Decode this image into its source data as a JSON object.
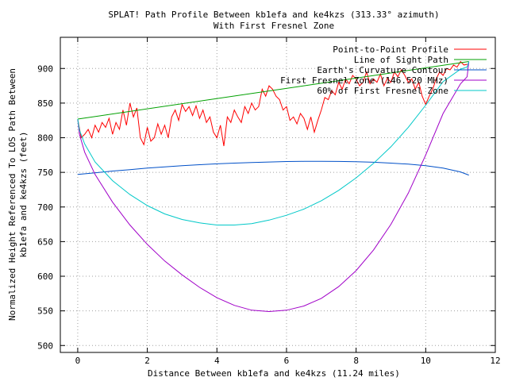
{
  "chart_data": {
    "type": "line",
    "title": "SPLAT! Path Profile Between kb1efa and ke4kzs (313.33° azimuth)",
    "subtitle": "With First Fresnel Zone",
    "xlabel": "Distance Between kb1efa and ke4kzs (11.24 miles)",
    "ylabel": "Normalized Height Referenced To LOS Path Between kb1efa and ke4kzs (feet)",
    "ylabel_lines": [
      "Normalized Height Referenced To LOS Path Between",
      "kb1efa and ke4kzs (feet)"
    ],
    "xlim": [
      -0.5,
      12
    ],
    "ylim": [
      490,
      945
    ],
    "xticks": [
      0,
      2,
      4,
      6,
      8,
      10,
      12
    ],
    "yticks": [
      500,
      550,
      600,
      650,
      700,
      750,
      800,
      850,
      900
    ],
    "grid": true,
    "legend_position": "top-right",
    "series": [
      {
        "name": "Point-to-Point Profile",
        "color": "#ff0000",
        "x": [
          0,
          0.1,
          0.2,
          0.3,
          0.4,
          0.5,
          0.6,
          0.7,
          0.8,
          0.9,
          1.0,
          1.1,
          1.2,
          1.3,
          1.4,
          1.5,
          1.6,
          1.7,
          1.8,
          1.9,
          2.0,
          2.1,
          2.2,
          2.3,
          2.4,
          2.5,
          2.6,
          2.7,
          2.8,
          2.9,
          3.0,
          3.1,
          3.2,
          3.3,
          3.4,
          3.5,
          3.6,
          3.7,
          3.8,
          3.9,
          4.0,
          4.1,
          4.2,
          4.3,
          4.4,
          4.5,
          4.6,
          4.7,
          4.8,
          4.9,
          5.0,
          5.1,
          5.2,
          5.3,
          5.4,
          5.5,
          5.6,
          5.7,
          5.8,
          5.9,
          6.0,
          6.1,
          6.2,
          6.3,
          6.4,
          6.5,
          6.6,
          6.7,
          6.8,
          6.9,
          7.0,
          7.1,
          7.2,
          7.3,
          7.4,
          7.5,
          7.6,
          7.7,
          7.8,
          7.9,
          8.0,
          8.1,
          8.2,
          8.3,
          8.4,
          8.5,
          8.6,
          8.7,
          8.8,
          8.9,
          9.0,
          9.1,
          9.2,
          9.3,
          9.4,
          9.5,
          9.6,
          9.7,
          9.8,
          9.9,
          10.0,
          10.1,
          10.2,
          10.3,
          10.4,
          10.5,
          10.6,
          10.7,
          10.8,
          10.9,
          11.0,
          11.1,
          11.2
        ],
        "values": [
          827,
          800,
          805,
          812,
          800,
          818,
          808,
          822,
          815,
          828,
          805,
          822,
          812,
          840,
          818,
          850,
          830,
          843,
          800,
          790,
          815,
          795,
          800,
          820,
          805,
          818,
          800,
          830,
          840,
          825,
          848,
          838,
          845,
          832,
          846,
          828,
          840,
          822,
          830,
          808,
          800,
          818,
          788,
          830,
          822,
          840,
          830,
          822,
          845,
          835,
          850,
          840,
          845,
          870,
          860,
          875,
          870,
          860,
          855,
          840,
          845,
          825,
          830,
          820,
          835,
          828,
          812,
          830,
          808,
          825,
          840,
          858,
          855,
          868,
          862,
          880,
          870,
          885,
          878,
          890,
          885,
          875,
          880,
          895,
          878,
          885,
          880,
          892,
          875,
          886,
          880,
          895,
          888,
          898,
          890,
          880,
          885,
          870,
          880,
          860,
          848,
          860,
          870,
          885,
          895,
          890,
          900,
          898,
          905,
          902,
          910,
          905,
          906
        ]
      },
      {
        "name": "Line of Sight Path",
        "color": "#00a000",
        "x": [
          0,
          11.24
        ],
        "values": [
          827,
          910
        ]
      },
      {
        "name": "Earth's Curvature Contour",
        "color": "#0050c8",
        "x": [
          0,
          0.5,
          1,
          1.5,
          2,
          2.5,
          3,
          3.5,
          4,
          4.5,
          5,
          5.5,
          6,
          6.5,
          7,
          7.5,
          8,
          8.5,
          9,
          9.5,
          10,
          10.5,
          11,
          11.24
        ],
        "values": [
          747,
          749.4,
          751.9,
          754.0,
          756.1,
          757.9,
          759.6,
          761.0,
          762.3,
          763.4,
          764.3,
          765.0,
          765.6,
          765.9,
          766.0,
          765.8,
          765.4,
          764.6,
          763.4,
          761.9,
          759.6,
          756.2,
          750.6,
          746
        ]
      },
      {
        "name": "First Fresnel Zone (146.520 MHz)",
        "color": "#a000c8",
        "x": [
          0,
          0.05,
          0.2,
          0.5,
          1,
          1.5,
          2,
          2.5,
          3,
          3.5,
          4,
          4.5,
          5,
          5.5,
          6,
          6.5,
          7,
          7.5,
          8,
          8.5,
          9,
          9.5,
          10,
          10.5,
          11,
          11.19,
          11.24
        ],
        "values": [
          827,
          805,
          779,
          747,
          707,
          674,
          646,
          622,
          602,
          584,
          569,
          558,
          551,
          549,
          551,
          557,
          568,
          585,
          608,
          638,
          675,
          720,
          775,
          835,
          878,
          888,
          910
        ]
      },
      {
        "name": "60% of First Fresnel Zone",
        "color": "#00c8c8",
        "x": [
          0,
          0.05,
          0.2,
          0.5,
          1,
          1.5,
          2,
          2.5,
          3,
          3.5,
          4,
          4.5,
          5,
          5.5,
          6,
          6.5,
          7,
          7.5,
          8,
          8.5,
          9,
          9.5,
          10,
          10.5,
          11,
          11.19,
          11.24
        ],
        "values": [
          827,
          811,
          791,
          765,
          738,
          718,
          702,
          690,
          682,
          677,
          674,
          674,
          676,
          681,
          688,
          697,
          709,
          724,
          742,
          763,
          787,
          815,
          847,
          881,
          899,
          902,
          910
        ]
      }
    ]
  }
}
